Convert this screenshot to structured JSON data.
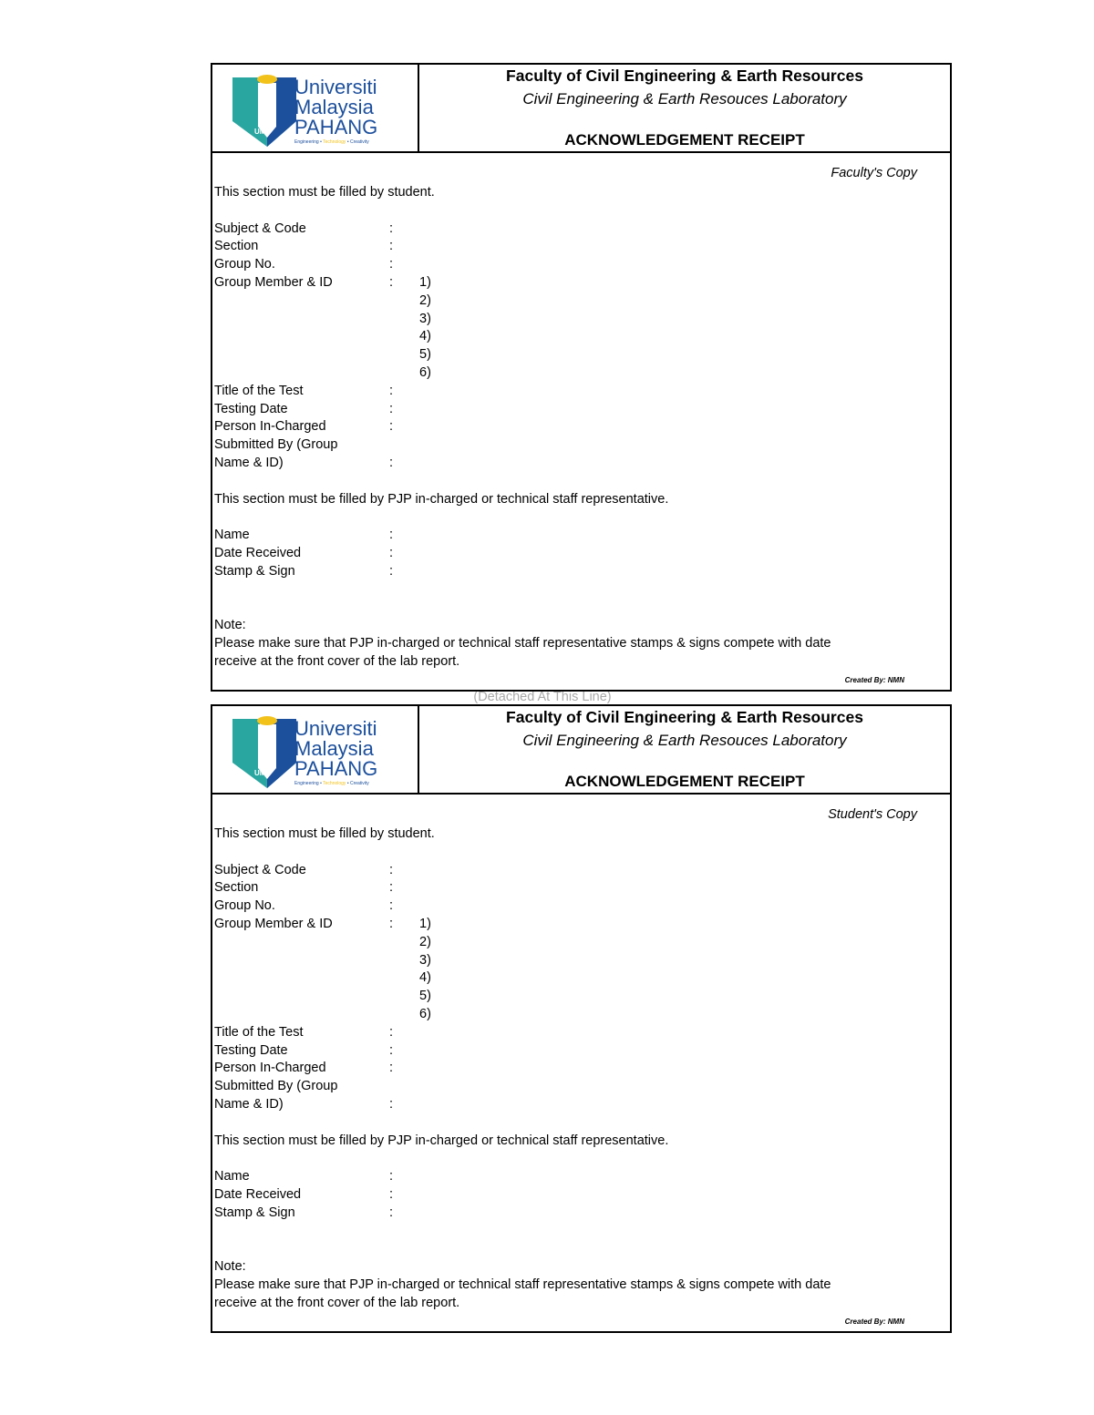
{
  "logo": {
    "line1": "Universiti",
    "line2": "Malaysia",
    "line3": "PAHANG",
    "tagline": "Engineering • Technology • Creativity",
    "badge": "UMP",
    "colors": {
      "blue": "#1c4f9c",
      "teal": "#2aa6a0",
      "yellow": "#f2c21b"
    }
  },
  "header": {
    "faculty": "Faculty of Civil Engineering & Earth Resources",
    "lab": "Civil Engineering & Earth Resouces Laboratory",
    "title": "ACKNOWLEDGEMENT RECEIPT"
  },
  "copies": [
    {
      "label": "Faculty's Copy"
    },
    {
      "label": "Student's Copy"
    }
  ],
  "form": {
    "student_section": "This section must be filled by student.",
    "fields": [
      "Subject & Code",
      "Section",
      "Group No.",
      "Group Member & ID"
    ],
    "members": [
      "1)",
      "2)",
      "3)",
      "4)",
      "5)",
      "6)"
    ],
    "fields2": [
      "Title of the Test",
      "Testing Date",
      "Person In-Charged"
    ],
    "submitted_1": "Submitted By (Group",
    "submitted_2": "Name & ID)",
    "staff_section": "This section must be filled by PJP in-charged or technical staff representative.",
    "staff_fields": [
      "Name",
      "Date Received",
      "Stamp & Sign"
    ],
    "colon": ":",
    "note_label": "Note:",
    "note_1": "Please make sure that PJP in-charged or technical staff representative stamps & signs compete with date",
    "note_2": "receive at the front cover of the lab report.",
    "credit": "Created By: NMN"
  },
  "detach_line": "(Detached At This Line)"
}
